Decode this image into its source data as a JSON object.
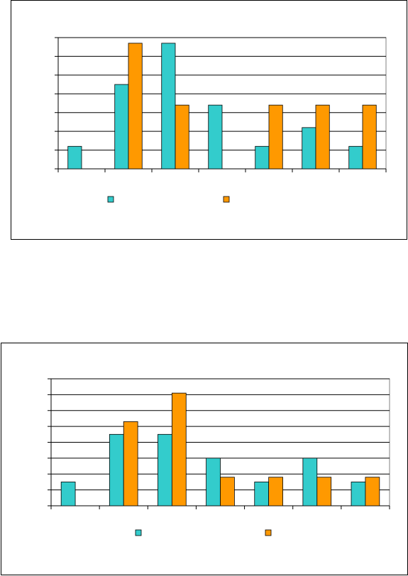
{
  "colors": {
    "series_a": "#33CCCC",
    "series_b": "#FF9900",
    "outline": "#000000"
  },
  "chart_data": [
    {
      "type": "bar",
      "title": "",
      "xlabel": "",
      "ylabel": "",
      "categories": [
        "",
        "",
        "",
        "",
        "",
        "",
        ""
      ],
      "ylim": [
        0,
        7
      ],
      "grid": true,
      "legend": "bottom",
      "series": [
        {
          "values": [
            1.2,
            4.5,
            6.7,
            3.4,
            1.2,
            2.2,
            1.2
          ]
        },
        {
          "values": [
            0,
            6.7,
            3.4,
            0,
            3.4,
            3.4,
            3.4
          ]
        }
      ]
    },
    {
      "type": "bar",
      "title": "",
      "xlabel": "",
      "ylabel": "",
      "categories": [
        "",
        "",
        "",
        "",
        "",
        "",
        ""
      ],
      "ylim": [
        0,
        8
      ],
      "grid": true,
      "legend": "bottom",
      "series": [
        {
          "values": [
            1.5,
            4.5,
            4.5,
            3.0,
            1.5,
            3.0,
            1.5
          ]
        },
        {
          "values": [
            0,
            5.3,
            7.1,
            1.8,
            1.8,
            1.8,
            1.8
          ]
        }
      ]
    }
  ]
}
